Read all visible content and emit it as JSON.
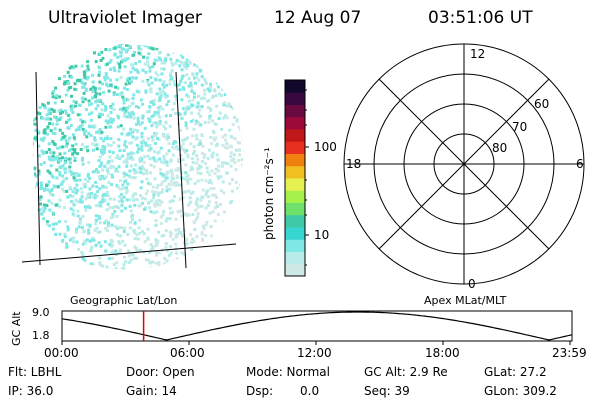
{
  "header": {
    "instrument": "Ultraviolet Imager",
    "date": "12 Aug 07",
    "time": "03:51:06 UT"
  },
  "colorbar": {
    "unit_label": "photon cm⁻²s⁻¹",
    "tick_100": "100",
    "tick_10": "10",
    "colors": [
      "#cfe9e6",
      "#b8ece9",
      "#7fe8e6",
      "#38d6d0",
      "#3fc9a6",
      "#6fe06a",
      "#a6f04a",
      "#e6f050",
      "#f0c020",
      "#f08010",
      "#e83020",
      "#c01818",
      "#9c0a3a",
      "#6a0840",
      "#3a0840",
      "#10082a"
    ]
  },
  "polar": {
    "mlt_top": "12",
    "mlt_bottom": "0",
    "mlt_left": "18",
    "mlt_right": "6",
    "lat_60": "60",
    "lat_70": "70",
    "lat_80": "80"
  },
  "labels": {
    "geographic": "Geographic Lat/Lon",
    "apex": "Apex MLat/MLT"
  },
  "orbit": {
    "y_label": "GC Alt",
    "y_top": "9.0",
    "y_bottom": "1.8",
    "x_ticks": [
      "00:00",
      "06:00",
      "12:00",
      "18:00",
      "23:59"
    ],
    "current_time_fraction": 0.16
  },
  "info": {
    "flt": "Flt: LBHL",
    "ip": "IP: 36.0",
    "door": "Door: Open",
    "gain": "Gain: 14",
    "mode": "Mode: Normal",
    "dsp_label": "Dsp:",
    "dsp_value": "0.0",
    "gcalt": "GC Alt: 2.9 Re",
    "seq": "Seq: 39",
    "glat": "GLat:  27.2",
    "glon": "GLon: 309.2"
  },
  "colors": {
    "current_marker": "#e00000",
    "image_cyan": "#7fe8e6",
    "image_green": "#3fc9a6",
    "image_pale": "#cfe9e6"
  }
}
